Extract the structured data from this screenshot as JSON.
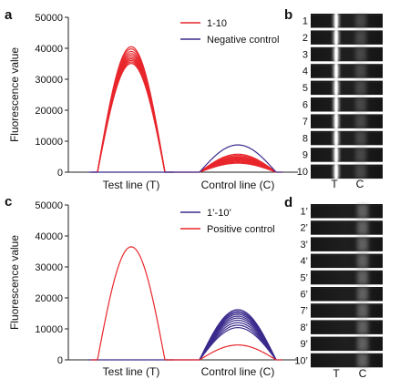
{
  "panel_labels": {
    "a": "a",
    "b": "b",
    "c": "c",
    "d": "d"
  },
  "colors": {
    "test_series": "#e8262b",
    "negative_control": "#3b2a8c",
    "positive_control": "#e8262b",
    "series_primes": "#3b2a8c"
  },
  "chart_data": [
    {
      "panel": "a",
      "type": "line",
      "ylabel": "Fluorescence value",
      "ylim": [
        0,
        50000
      ],
      "yticks": [
        "0",
        "10000",
        "20000",
        "30000",
        "40000",
        "50000"
      ],
      "categories": [
        "Test line (T)",
        "Control line (C)"
      ],
      "grid": false,
      "legend_placement": "top-right",
      "series": [
        {
          "name": "1-10",
          "color": "#e8262b",
          "peaks": [
            {
              "category": "Test line (T)",
              "values": [
                40500,
                39800,
                39000,
                38300,
                37700,
                37100,
                36600,
                36100,
                35600,
                35100
              ]
            },
            {
              "category": "Control line (C)",
              "values": [
                5800,
                5400,
                5000,
                4700,
                4400,
                4100,
                3800,
                3500,
                3200,
                2900
              ]
            }
          ]
        },
        {
          "name": "Negative control",
          "color": "#3b2a8c",
          "peaks": [
            {
              "category": "Test line (T)",
              "values": [
                0
              ]
            },
            {
              "category": "Control line (C)",
              "values": [
                8800
              ]
            }
          ]
        }
      ]
    },
    {
      "panel": "c",
      "type": "line",
      "ylabel": "Fluorescence value",
      "ylim": [
        0,
        50000
      ],
      "yticks": [
        "0",
        "10000",
        "20000",
        "30000",
        "40000",
        "50000"
      ],
      "categories": [
        "Test line (T)",
        "Control line (C)"
      ],
      "grid": false,
      "legend_placement": "top-right",
      "series": [
        {
          "name": "1’-10’",
          "color": "#3b2a8c",
          "peaks": [
            {
              "category": "Test line (T)",
              "values": [
                0
              ]
            },
            {
              "category": "Control line (C)",
              "values": [
                16200,
                15700,
                15200,
                14700,
                14100,
                13500,
                12800,
                12000,
                11200,
                10400
              ]
            }
          ]
        },
        {
          "name": "Positive control",
          "color": "#e8262b",
          "peaks": [
            {
              "category": "Test line (T)",
              "values": [
                36500
              ]
            },
            {
              "category": "Control line (C)",
              "values": [
                4800
              ]
            }
          ]
        }
      ]
    }
  ],
  "strips": {
    "b": {
      "labels": [
        "1",
        "2",
        "3",
        "4",
        "5",
        "6",
        "7",
        "8",
        "9",
        "10"
      ],
      "lane_labels": [
        "T",
        "C"
      ]
    },
    "d": {
      "labels": [
        "1’",
        "2’",
        "3’",
        "4’",
        "5’",
        "6’",
        "7’",
        "8’",
        "9’",
        "10’"
      ],
      "lane_labels": [
        "T",
        "C"
      ]
    }
  }
}
